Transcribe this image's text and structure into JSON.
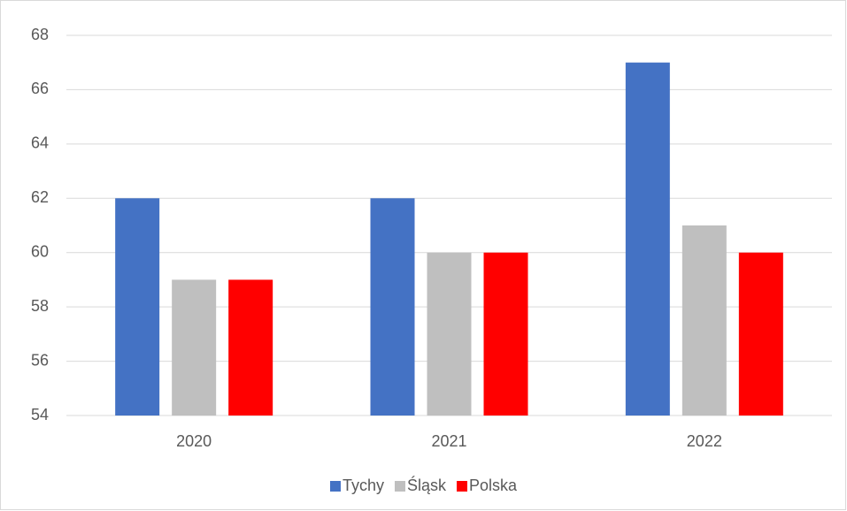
{
  "chart_data": {
    "type": "bar",
    "categories": [
      "2020",
      "2021",
      "2022"
    ],
    "series": [
      {
        "name": "Tychy",
        "color": "#4472c4",
        "values": [
          62,
          62,
          67
        ]
      },
      {
        "name": "Śląsk",
        "color": "#bfbfbf",
        "values": [
          59,
          60,
          61
        ]
      },
      {
        "name": "Polska",
        "color": "#ff0000",
        "values": [
          59,
          60,
          60
        ]
      }
    ],
    "ylim": [
      54,
      68
    ],
    "yticks": [
      54,
      56,
      58,
      60,
      62,
      64,
      66,
      68
    ],
    "grid": true,
    "legend": "bottom"
  }
}
